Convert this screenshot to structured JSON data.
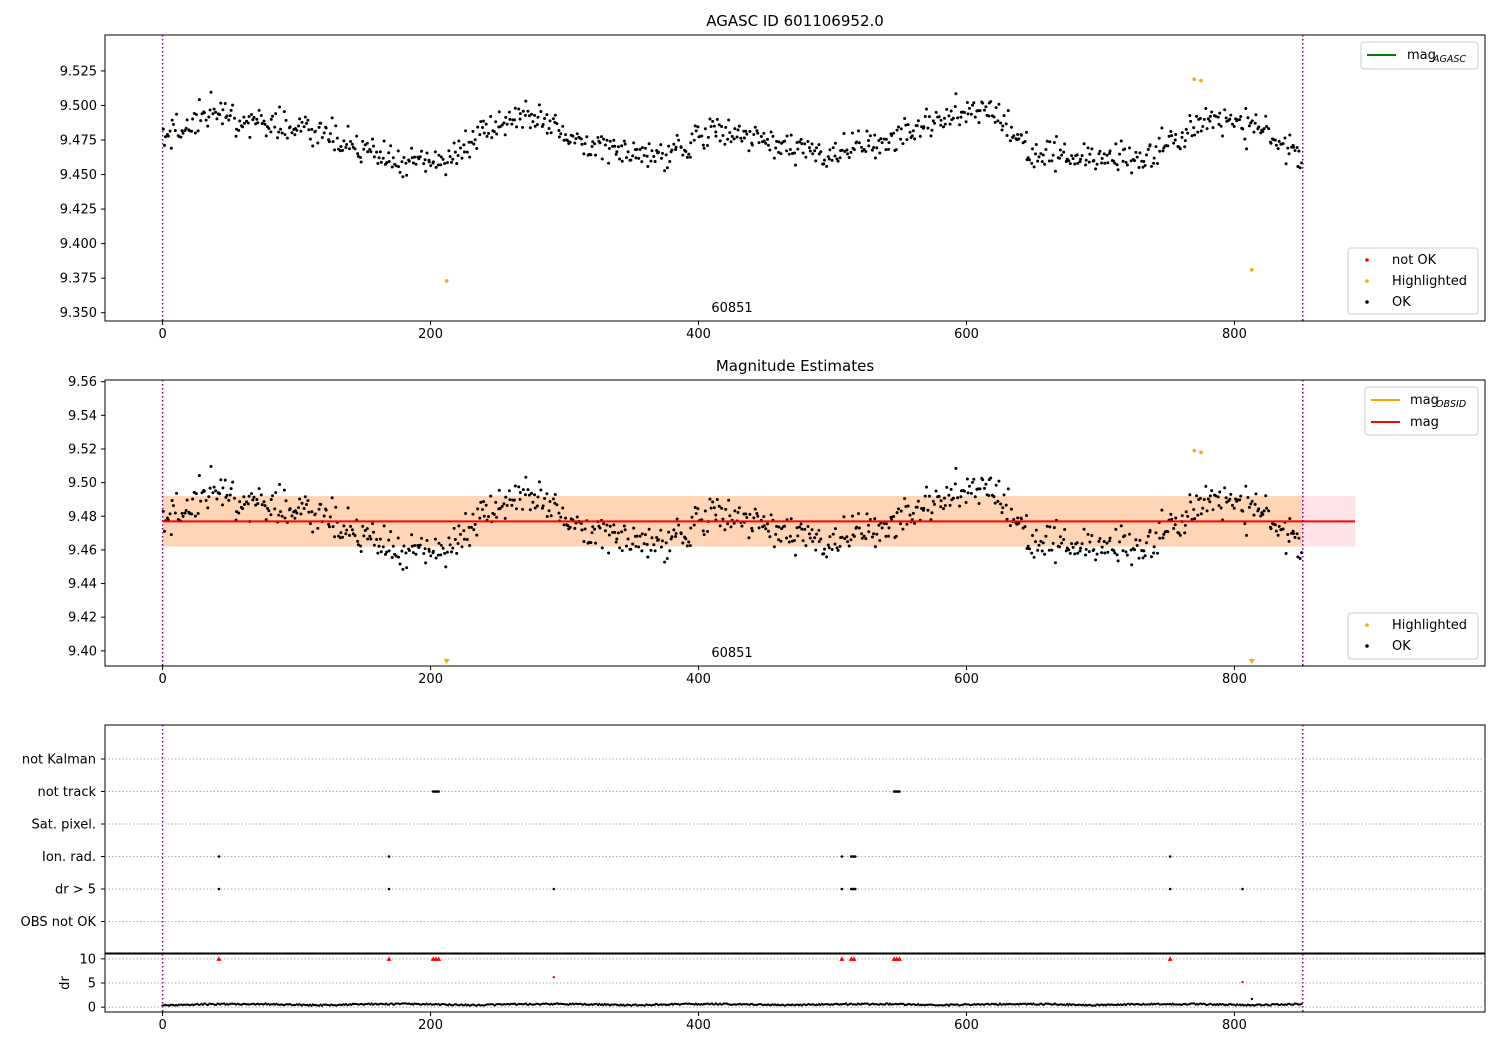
{
  "chart_data": [
    {
      "type": "scatter",
      "title": "AGASC ID 601106952.0",
      "xlim": [
        -43,
        987
      ],
      "ylim": [
        9.344,
        9.551
      ],
      "xticks": [
        "0",
        "200",
        "400",
        "600",
        "800"
      ],
      "yticks": [
        "9.350",
        "9.375",
        "9.400",
        "9.425",
        "9.450",
        "9.475",
        "9.500",
        "9.525"
      ],
      "obsid_label": "60851",
      "obs_boundaries": [
        0,
        851
      ],
      "line_legend": [
        {
          "label": "mag",
          "sub": "AGASC",
          "color": "#008000"
        }
      ],
      "point_legend": [
        {
          "label": "not OK",
          "color": "#ff0000"
        },
        {
          "label": "Highlighted",
          "color": "#ffa500"
        },
        {
          "label": "OK",
          "color": "#000000"
        }
      ],
      "highlighted": [
        [
          212,
          9.373
        ],
        [
          770,
          9.519
        ],
        [
          775,
          9.518
        ],
        [
          813,
          9.381
        ]
      ],
      "ok_trend": [
        [
          0,
          9.476
        ],
        [
          40,
          9.495
        ],
        [
          80,
          9.486
        ],
        [
          120,
          9.481
        ],
        [
          150,
          9.466
        ],
        [
          180,
          9.458
        ],
        [
          210,
          9.46
        ],
        [
          240,
          9.48
        ],
        [
          280,
          9.493
        ],
        [
          320,
          9.47
        ],
        [
          370,
          9.463
        ],
        [
          410,
          9.482
        ],
        [
          450,
          9.474
        ],
        [
          490,
          9.466
        ],
        [
          540,
          9.472
        ],
        [
          580,
          9.494
        ],
        [
          620,
          9.496
        ],
        [
          650,
          9.466
        ],
        [
          690,
          9.462
        ],
        [
          730,
          9.46
        ],
        [
          760,
          9.476
        ],
        [
          780,
          9.492
        ],
        [
          820,
          9.483
        ],
        [
          851,
          9.462
        ]
      ]
    },
    {
      "type": "scatter",
      "title": "Magnitude Estimates",
      "xlim": [
        -43,
        987
      ],
      "ylim": [
        9.391,
        9.561
      ],
      "xticks": [
        "0",
        "200",
        "400",
        "600",
        "800"
      ],
      "yticks": [
        "9.40",
        "9.42",
        "9.44",
        "9.46",
        "9.48",
        "9.50",
        "9.52",
        "9.54",
        "9.56"
      ],
      "obsid_label": "60851",
      "obs_boundaries": [
        0,
        851
      ],
      "mag": 9.477,
      "mag_band": [
        9.462,
        9.492
      ],
      "mag_band_extent": [
        0,
        890
      ],
      "line_legend": [
        {
          "label": "mag",
          "sub": "OBSID",
          "color": "#ffa500"
        },
        {
          "label": "mag",
          "sub": "",
          "color": "#ff0000"
        }
      ],
      "point_legend": [
        {
          "label": "Highlighted",
          "color": "#ffa500"
        },
        {
          "label": "OK",
          "color": "#000000"
        }
      ],
      "highlighted": [
        [
          770,
          9.519
        ],
        [
          775,
          9.518
        ]
      ],
      "clipped_markers": [
        212,
        813
      ]
    },
    {
      "type": "scatter",
      "title": "",
      "xlim": [
        -43,
        987
      ],
      "xticks": [
        "0",
        "200",
        "400",
        "600",
        "800"
      ],
      "obs_boundaries": [
        0,
        851
      ],
      "flag_rows": [
        "not Kalman",
        "not track",
        "Sat. pixel.",
        "Ion. rad.",
        "dr > 5",
        "OBS not OK"
      ],
      "flags": {
        "not track": [
          202,
          203,
          204,
          205,
          206,
          546,
          547,
          548,
          549,
          550
        ],
        "Ion. rad.": [
          42,
          169,
          507,
          514,
          515,
          516,
          517,
          752
        ],
        "dr > 5": [
          42,
          169,
          292,
          507,
          514,
          515,
          516,
          517,
          752,
          806
        ]
      }
    },
    {
      "type": "scatter",
      "ylabel": "dr",
      "xlim": [
        -43,
        987
      ],
      "ylim": [
        -1,
        11
      ],
      "xticks": [
        "0",
        "200",
        "400",
        "600",
        "800"
      ],
      "yticks": [
        "0",
        "5",
        "10"
      ],
      "obs_boundaries": [
        0,
        851
      ],
      "dr_outliers": [
        [
          292,
          6.2
        ],
        [
          806,
          5.2
        ],
        [
          813,
          1.7
        ]
      ],
      "dr_clipped": [
        42,
        169,
        202,
        204,
        206,
        507,
        514,
        516,
        546,
        548,
        550,
        752
      ]
    }
  ]
}
